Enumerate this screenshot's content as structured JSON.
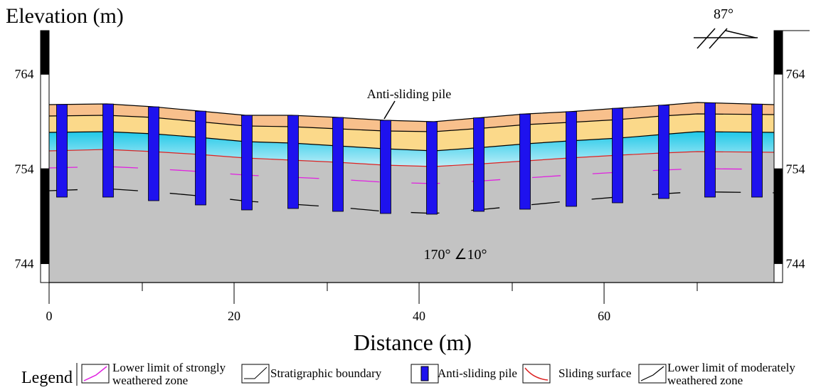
{
  "title": "Elevation (m)",
  "x_axis": {
    "label": "Distance (m)",
    "range": [
      0,
      79.3
    ],
    "ticks": [
      0,
      20,
      40,
      60
    ]
  },
  "y_axis": {
    "range": [
      742,
      768.6
    ],
    "ticks": [
      764,
      754,
      744
    ]
  },
  "annotations": {
    "pile": "Anti-sliding pile",
    "orientation": "170°  ∠10°",
    "dip": "87°"
  },
  "legend": {
    "title": "Legend",
    "items": [
      [
        "Lower limit of strongly",
        "weathered zone"
      ],
      [
        "Stratigraphic  boundary"
      ],
      [
        "Anti-sliding pile"
      ],
      [
        "Sliding surface"
      ],
      [
        "Lower limit of moderately",
        "weathered zone"
      ]
    ]
  }
}
